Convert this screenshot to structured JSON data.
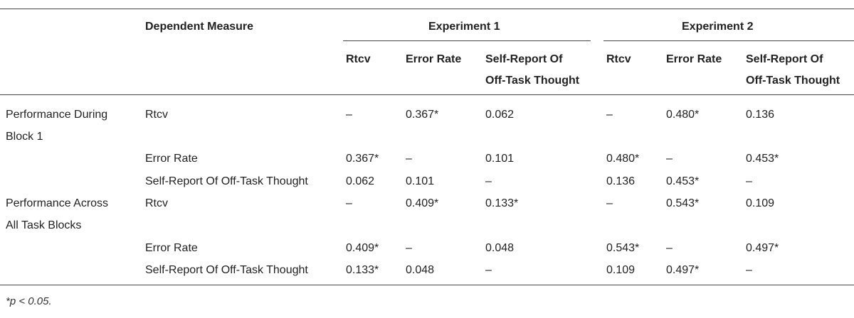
{
  "header": {
    "dependent_measure": "Dependent Measure",
    "experiment1": "Experiment 1",
    "experiment2": "Experiment 2",
    "rtcv": "Rtcv",
    "error_rate": "Error Rate",
    "self_report_line1": "Self-Report Of",
    "self_report_line2": "Off-Task Thought"
  },
  "groups": [
    {
      "label_line1": "Performance During",
      "label_line2": "Block 1",
      "rows": [
        {
          "measure": "Rtcv",
          "cells": [
            "–",
            "0.367*",
            "0.062",
            "–",
            "0.480*",
            "0.136"
          ]
        },
        {
          "measure": "Error Rate",
          "cells": [
            "0.367*",
            "–",
            "0.101",
            "0.480*",
            "–",
            "0.453*"
          ]
        },
        {
          "measure": "Self-Report Of Off-Task Thought",
          "cells": [
            "0.062",
            "0.101",
            "–",
            "0.136",
            "0.453*",
            "–"
          ]
        }
      ]
    },
    {
      "label_line1": "Performance Across",
      "label_line2": "All Task Blocks",
      "rows": [
        {
          "measure": "Rtcv",
          "cells": [
            "–",
            "0.409*",
            "0.133*",
            "–",
            "0.543*",
            "0.109"
          ]
        },
        {
          "measure": "Error Rate",
          "cells": [
            "0.409*",
            "–",
            "0.048",
            "0.543*",
            "–",
            "0.497*"
          ]
        },
        {
          "measure": "Self-Report Of Off-Task Thought",
          "cells": [
            "0.133*",
            "0.048",
            "–",
            "0.109",
            "0.497*",
            "–"
          ]
        }
      ]
    }
  ],
  "footnote": "*p < 0.05."
}
